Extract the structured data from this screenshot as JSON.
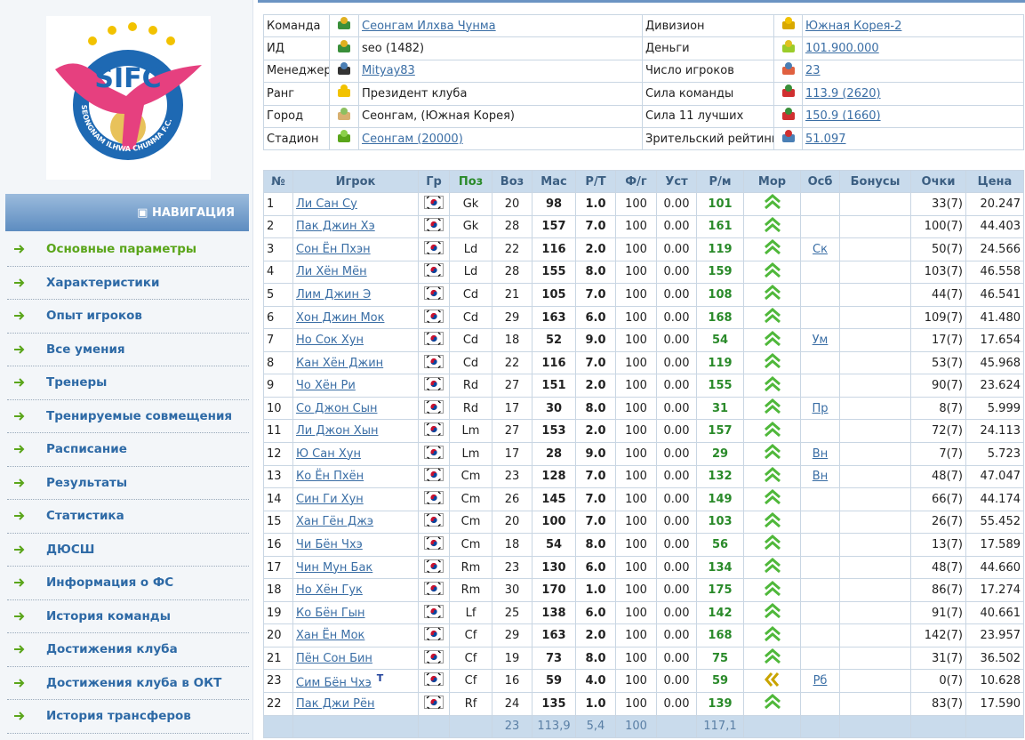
{
  "logo": {
    "text": "SIFC",
    "ring": "SEONGNAM ILHWA CHUNMA F.C."
  },
  "navigation": {
    "title": "НАВИГАЦИЯ",
    "items": [
      "Основные параметры",
      "Характеристики",
      "Опыт игроков",
      "Все умения",
      "Тренеры",
      "Тренируемые совмещения",
      "Расписание",
      "Результаты",
      "Статистика",
      "ДЮСШ",
      "Информация о ФС",
      "История команды",
      "Достижения клуба",
      "Достижения клуба в ОКТ",
      "История трансферов"
    ],
    "active": 0
  },
  "info": {
    "left": [
      {
        "label": "Команда",
        "value": "Сеонгам Илхва Чунма",
        "link": true
      },
      {
        "label": "ИД",
        "value": "seo (1482)",
        "link": false
      },
      {
        "label": "Менеджер",
        "value": "Mityay83",
        "link": true
      },
      {
        "label": "Ранг",
        "value": "Президент клуба",
        "link": false
      },
      {
        "label": "Город",
        "value": "Сеонгам, (Южная Корея)",
        "link": false
      },
      {
        "label": "Стадион",
        "value": "Сеонгам (20000)",
        "link": true
      }
    ],
    "right": [
      {
        "label": "Дивизион",
        "value": "Южная Корея-2",
        "link": true
      },
      {
        "label": "Деньги",
        "value": "101.900.000",
        "link": true
      },
      {
        "label": "Число игроков",
        "value": "23",
        "link": true
      },
      {
        "label": "Сила команды",
        "value": "113.9 (2620)",
        "link": true
      },
      {
        "label": "Сила 11 лучших",
        "value": "150.9 (1660)",
        "link": true
      },
      {
        "label": "Зрительский рейтинг",
        "value": "51.097",
        "link": true
      }
    ]
  },
  "players": {
    "headers": [
      "№",
      "Игрок",
      "Гр",
      "Поз",
      "Воз",
      "Мас",
      "Р/Т",
      "Ф/г",
      "Уст",
      "Р/м",
      "Мор",
      "Осб",
      "Бонусы",
      "Очки",
      "Цена"
    ],
    "rows": [
      {
        "n": "1",
        "name": "Ли Сан Су",
        "pos": "Gk",
        "age": "20",
        "mas": "98",
        "rt": "1.0",
        "fg": "100",
        "ust": "0.00",
        "rm": "101",
        "mor": "up",
        "pts": "33(7)",
        "price": "20.247"
      },
      {
        "n": "2",
        "name": "Пак Джин Хэ",
        "pos": "Gk",
        "age": "28",
        "mas": "157",
        "rt": "7.0",
        "fg": "100",
        "ust": "0.00",
        "rm": "161",
        "mor": "up",
        "pts": "100(7)",
        "price": "44.403"
      },
      {
        "n": "3",
        "name": "Сон Ён Пхэн",
        "pos": "Ld",
        "age": "22",
        "mas": "116",
        "rt": "2.0",
        "fg": "100",
        "ust": "0.00",
        "rm": "119",
        "mor": "up",
        "osb": "Ск",
        "pts": "50(7)",
        "price": "24.566"
      },
      {
        "n": "4",
        "name": "Ли Хён Мён",
        "pos": "Ld",
        "age": "28",
        "mas": "155",
        "rt": "8.0",
        "fg": "100",
        "ust": "0.00",
        "rm": "159",
        "mor": "up",
        "pts": "103(7)",
        "price": "46.558"
      },
      {
        "n": "5",
        "name": "Лим Джин Э",
        "pos": "Cd",
        "age": "21",
        "mas": "105",
        "rt": "7.0",
        "fg": "100",
        "ust": "0.00",
        "rm": "108",
        "mor": "up",
        "pts": "44(7)",
        "price": "46.541"
      },
      {
        "n": "6",
        "name": "Хон Джин Мок",
        "pos": "Cd",
        "age": "29",
        "mas": "163",
        "rt": "6.0",
        "fg": "100",
        "ust": "0.00",
        "rm": "168",
        "mor": "up",
        "pts": "109(7)",
        "price": "41.480"
      },
      {
        "n": "7",
        "name": "Но Сок Хун",
        "pos": "Cd",
        "age": "18",
        "mas": "52",
        "rt": "9.0",
        "fg": "100",
        "ust": "0.00",
        "rm": "54",
        "mor": "up",
        "osb": "Ум",
        "pts": "17(7)",
        "price": "17.654"
      },
      {
        "n": "8",
        "name": "Кан Хён Джин",
        "pos": "Cd",
        "age": "22",
        "mas": "116",
        "rt": "7.0",
        "fg": "100",
        "ust": "0.00",
        "rm": "119",
        "mor": "up",
        "pts": "53(7)",
        "price": "45.968"
      },
      {
        "n": "9",
        "name": "Чо Хён Ри",
        "pos": "Rd",
        "age": "27",
        "mas": "151",
        "rt": "2.0",
        "fg": "100",
        "ust": "0.00",
        "rm": "155",
        "mor": "up",
        "pts": "90(7)",
        "price": "23.624"
      },
      {
        "n": "10",
        "name": "Со Джон Сын",
        "pos": "Rd",
        "age": "17",
        "mas": "30",
        "rt": "8.0",
        "fg": "100",
        "ust": "0.00",
        "rm": "31",
        "mor": "up",
        "osb": "Пр",
        "pts": "8(7)",
        "price": "5.999"
      },
      {
        "n": "11",
        "name": "Ли Джон Хын",
        "pos": "Lm",
        "age": "27",
        "mas": "153",
        "rt": "2.0",
        "fg": "100",
        "ust": "0.00",
        "rm": "157",
        "mor": "up",
        "pts": "72(7)",
        "price": "24.113"
      },
      {
        "n": "12",
        "name": "Ю Сан Хун",
        "pos": "Lm",
        "age": "17",
        "mas": "28",
        "rt": "9.0",
        "fg": "100",
        "ust": "0.00",
        "rm": "29",
        "mor": "up",
        "osb": "Вн",
        "pts": "7(7)",
        "price": "5.723"
      },
      {
        "n": "13",
        "name": "Ко Ён Пхён",
        "pos": "Cm",
        "age": "23",
        "mas": "128",
        "rt": "7.0",
        "fg": "100",
        "ust": "0.00",
        "rm": "132",
        "mor": "up",
        "osb": "Вн",
        "pts": "48(7)",
        "price": "47.047"
      },
      {
        "n": "14",
        "name": "Син Ги Хун",
        "pos": "Cm",
        "age": "26",
        "mas": "145",
        "rt": "7.0",
        "fg": "100",
        "ust": "0.00",
        "rm": "149",
        "mor": "up",
        "pts": "66(7)",
        "price": "44.174"
      },
      {
        "n": "15",
        "name": "Хан Гён Джэ",
        "pos": "Cm",
        "age": "20",
        "mas": "100",
        "rt": "7.0",
        "fg": "100",
        "ust": "0.00",
        "rm": "103",
        "mor": "up",
        "pts": "26(7)",
        "price": "55.452"
      },
      {
        "n": "16",
        "name": "Чи Бён Чхэ",
        "pos": "Cm",
        "age": "18",
        "mas": "54",
        "rt": "8.0",
        "fg": "100",
        "ust": "0.00",
        "rm": "56",
        "mor": "up",
        "pts": "13(7)",
        "price": "17.589"
      },
      {
        "n": "17",
        "name": "Чин Мун Бак",
        "pos": "Rm",
        "age": "23",
        "mas": "130",
        "rt": "6.0",
        "fg": "100",
        "ust": "0.00",
        "rm": "134",
        "mor": "up",
        "pts": "48(7)",
        "price": "44.660"
      },
      {
        "n": "18",
        "name": "Но Хён Гук",
        "pos": "Rm",
        "age": "30",
        "mas": "170",
        "rt": "1.0",
        "fg": "100",
        "ust": "0.00",
        "rm": "175",
        "mor": "up",
        "pts": "86(7)",
        "price": "17.274"
      },
      {
        "n": "19",
        "name": "Ко Бён Гын",
        "pos": "Lf",
        "age": "25",
        "mas": "138",
        "rt": "6.0",
        "fg": "100",
        "ust": "0.00",
        "rm": "142",
        "mor": "up",
        "pts": "91(7)",
        "price": "40.661"
      },
      {
        "n": "20",
        "name": "Хан Ён Мок",
        "pos": "Cf",
        "age": "29",
        "mas": "163",
        "rt": "2.0",
        "fg": "100",
        "ust": "0.00",
        "rm": "168",
        "mor": "up",
        "pts": "142(7)",
        "price": "23.957"
      },
      {
        "n": "21",
        "name": "Пён Сон Бин",
        "pos": "Cf",
        "age": "19",
        "mas": "73",
        "rt": "8.0",
        "fg": "100",
        "ust": "0.00",
        "rm": "75",
        "mor": "up",
        "pts": "31(7)",
        "price": "36.502"
      },
      {
        "n": "23",
        "name": "Сим Бён Чхэ",
        "badge": "T",
        "pos": "Cf",
        "age": "16",
        "mas": "59",
        "rt": "4.0",
        "fg": "100",
        "ust": "0.00",
        "rm": "59",
        "mor": "left",
        "osb": "Рб",
        "pts": "0(7)",
        "price": "10.628"
      },
      {
        "n": "22",
        "name": "Пак Джи Рён",
        "pos": "Rf",
        "age": "24",
        "mas": "135",
        "rt": "1.0",
        "fg": "100",
        "ust": "0.00",
        "rm": "139",
        "mor": "up",
        "pts": "83(7)",
        "price": "17.590"
      }
    ],
    "totals": {
      "age": "23",
      "mas": "113,9",
      "rt": "5,4",
      "fg": "100",
      "rm": "117,1"
    }
  }
}
